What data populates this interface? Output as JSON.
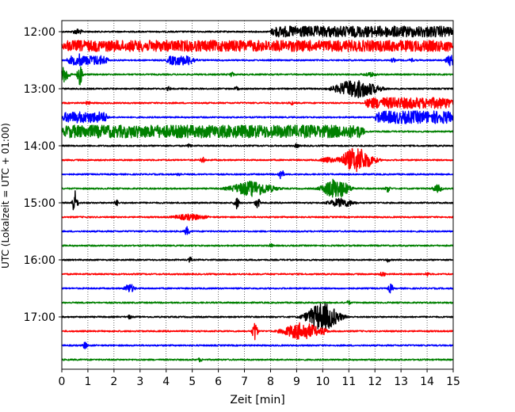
{
  "chart_data": {
    "type": "line",
    "title": "",
    "xlabel": "Zeit  [min]",
    "ylabel": "UTC (Lokalzeit = UTC + 01:00)",
    "xlim": [
      0,
      15
    ],
    "x_ticks": [
      "0",
      "1",
      "2",
      "3",
      "4",
      "5",
      "6",
      "7",
      "8",
      "9",
      "10",
      "11",
      "12",
      "13",
      "14",
      "15"
    ],
    "y_ticks": [
      "12:00",
      "13:00",
      "14:00",
      "15:00",
      "16:00",
      "17:00"
    ],
    "grid": "vertical dotted",
    "legend": "none",
    "trace_colors": [
      "#000000",
      "#ff0000",
      "#0000ff",
      "#008000"
    ],
    "series": [
      {
        "start": "12:00",
        "color": "#000000",
        "events": [
          [
            0.6,
            4,
            0.2
          ],
          [
            8.0,
            7,
            7.0,
            "band"
          ]
        ]
      },
      {
        "start": "12:15",
        "color": "#ff0000",
        "events": [
          [
            0.0,
            7,
            15.0,
            "band"
          ]
        ]
      },
      {
        "start": "12:30",
        "color": "#0000ff",
        "events": [
          [
            0.2,
            6,
            1.6,
            "band"
          ],
          [
            0.7,
            9,
            0.1
          ],
          [
            4.0,
            6,
            1.1,
            "band"
          ],
          [
            5.1,
            3,
            0.15
          ],
          [
            12.7,
            3,
            0.1
          ],
          [
            13.4,
            3,
            0.1
          ],
          [
            14.9,
            7,
            0.2
          ]
        ]
      },
      {
        "start": "12:45",
        "color": "#008000",
        "events": [
          [
            0.1,
            10,
            0.2
          ],
          [
            0.7,
            14,
            0.1
          ],
          [
            6.5,
            4,
            0.1
          ],
          [
            11.8,
            3,
            0.3
          ]
        ]
      },
      {
        "start": "13:00",
        "color": "#000000",
        "events": [
          [
            11.3,
            12,
            0.8
          ],
          [
            4.1,
            3,
            0.1
          ],
          [
            6.7,
            3,
            0.1
          ]
        ]
      },
      {
        "start": "13:15",
        "color": "#ff0000",
        "events": [
          [
            11.6,
            7,
            3.4,
            "band"
          ],
          [
            1.0,
            3,
            0.1
          ],
          [
            8.8,
            3,
            0.1
          ]
        ]
      },
      {
        "start": "13:30",
        "color": "#0000ff",
        "events": [
          [
            0.0,
            7,
            1.8,
            "band"
          ],
          [
            12.0,
            8,
            3.0,
            "band"
          ]
        ]
      },
      {
        "start": "13:45",
        "color": "#008000",
        "events": [
          [
            0.0,
            8,
            11.6,
            "band"
          ]
        ]
      },
      {
        "start": "14:00",
        "color": "#000000",
        "events": [
          [
            4.9,
            3,
            0.1
          ],
          [
            9.0,
            3,
            0.1
          ]
        ]
      },
      {
        "start": "14:15",
        "color": "#ff0000",
        "events": [
          [
            11.3,
            16,
            0.6
          ],
          [
            10.2,
            4,
            0.3
          ],
          [
            5.4,
            4,
            0.1
          ]
        ]
      },
      {
        "start": "14:30",
        "color": "#0000ff",
        "events": [
          [
            8.4,
            8,
            0.1
          ],
          [
            4.5,
            3,
            0.1
          ]
        ]
      },
      {
        "start": "14:45",
        "color": "#008000",
        "events": [
          [
            7.3,
            10,
            0.8
          ],
          [
            10.5,
            13,
            0.5
          ],
          [
            12.5,
            5,
            0.1
          ],
          [
            14.4,
            5,
            0.2
          ]
        ]
      },
      {
        "start": "15:00",
        "color": "#000000",
        "events": [
          [
            0.5,
            16,
            0.1
          ],
          [
            6.7,
            8,
            0.1
          ],
          [
            7.5,
            7,
            0.1
          ],
          [
            10.7,
            6,
            0.5
          ],
          [
            2.1,
            4,
            0.1
          ]
        ]
      },
      {
        "start": "15:15",
        "color": "#ff0000",
        "events": [
          [
            4.9,
            4,
            0.7
          ]
        ]
      },
      {
        "start": "15:30",
        "color": "#0000ff",
        "events": [
          [
            4.8,
            6,
            0.1
          ]
        ]
      },
      {
        "start": "15:45",
        "color": "#008000",
        "events": [
          [
            8.0,
            3,
            0.1
          ]
        ]
      },
      {
        "start": "16:00",
        "color": "#000000",
        "events": [
          [
            4.9,
            4,
            0.1
          ],
          [
            12.5,
            3,
            0.1
          ]
        ]
      },
      {
        "start": "16:15",
        "color": "#ff0000",
        "events": [
          [
            12.3,
            4,
            0.1
          ],
          [
            14.0,
            3,
            0.1
          ]
        ]
      },
      {
        "start": "16:30",
        "color": "#0000ff",
        "events": [
          [
            2.6,
            6,
            0.2
          ],
          [
            12.6,
            6,
            0.1
          ]
        ]
      },
      {
        "start": "16:45",
        "color": "#008000",
        "events": [
          [
            11.0,
            3,
            0.1
          ]
        ]
      },
      {
        "start": "17:00",
        "color": "#000000",
        "events": [
          [
            10.0,
            18,
            0.6
          ],
          [
            2.6,
            3,
            0.1
          ]
        ]
      },
      {
        "start": "17:15",
        "color": "#ff0000",
        "events": [
          [
            9.2,
            11,
            0.7
          ],
          [
            7.4,
            13,
            0.1
          ],
          [
            10.0,
            5,
            0.2
          ]
        ]
      },
      {
        "start": "17:30",
        "color": "#0000ff",
        "events": [
          [
            0.9,
            5,
            0.1
          ]
        ]
      },
      {
        "start": "17:45",
        "color": "#008000",
        "events": [
          [
            5.3,
            3,
            0.1
          ]
        ]
      }
    ]
  }
}
